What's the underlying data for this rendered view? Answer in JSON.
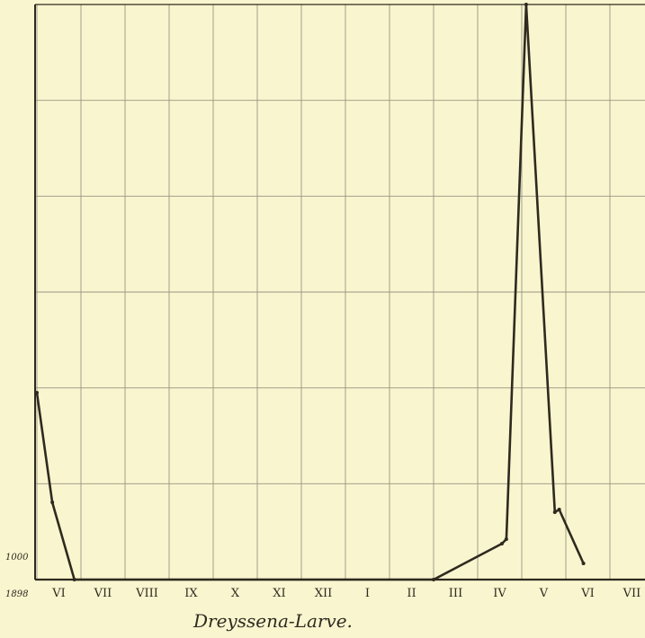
{
  "chart_data": {
    "type": "line",
    "title": "Dreyssena-Larve.",
    "xlabel": "",
    "ylabel": "",
    "year_label": "1898",
    "y_tick_label": "1000",
    "month_labels": [
      "VI",
      "VII",
      "VIII",
      "IX",
      "X",
      "XI",
      "XII",
      "I",
      "II",
      "III",
      "IV",
      "V",
      "VI",
      "VII"
    ],
    "x_range": [
      0,
      13.4
    ],
    "y_range": [
      0,
      6400
    ],
    "grid": true,
    "series": [
      {
        "points": [
          {
            "x": 0.0,
            "y": 2080
          },
          {
            "x": 0.35,
            "y": 860
          },
          {
            "x": 0.85,
            "y": 0
          },
          {
            "x": 9.0,
            "y": 0
          },
          {
            "x": 10.55,
            "y": 400
          },
          {
            "x": 10.65,
            "y": 450
          },
          {
            "x": 11.1,
            "y": 6400
          },
          {
            "x": 11.75,
            "y": 750
          },
          {
            "x": 11.85,
            "y": 780
          },
          {
            "x": 12.4,
            "y": 180
          }
        ]
      }
    ],
    "colors": {
      "background": "#f9f5cf",
      "grid": "#9a9580",
      "line": "#2e2a1f"
    }
  }
}
